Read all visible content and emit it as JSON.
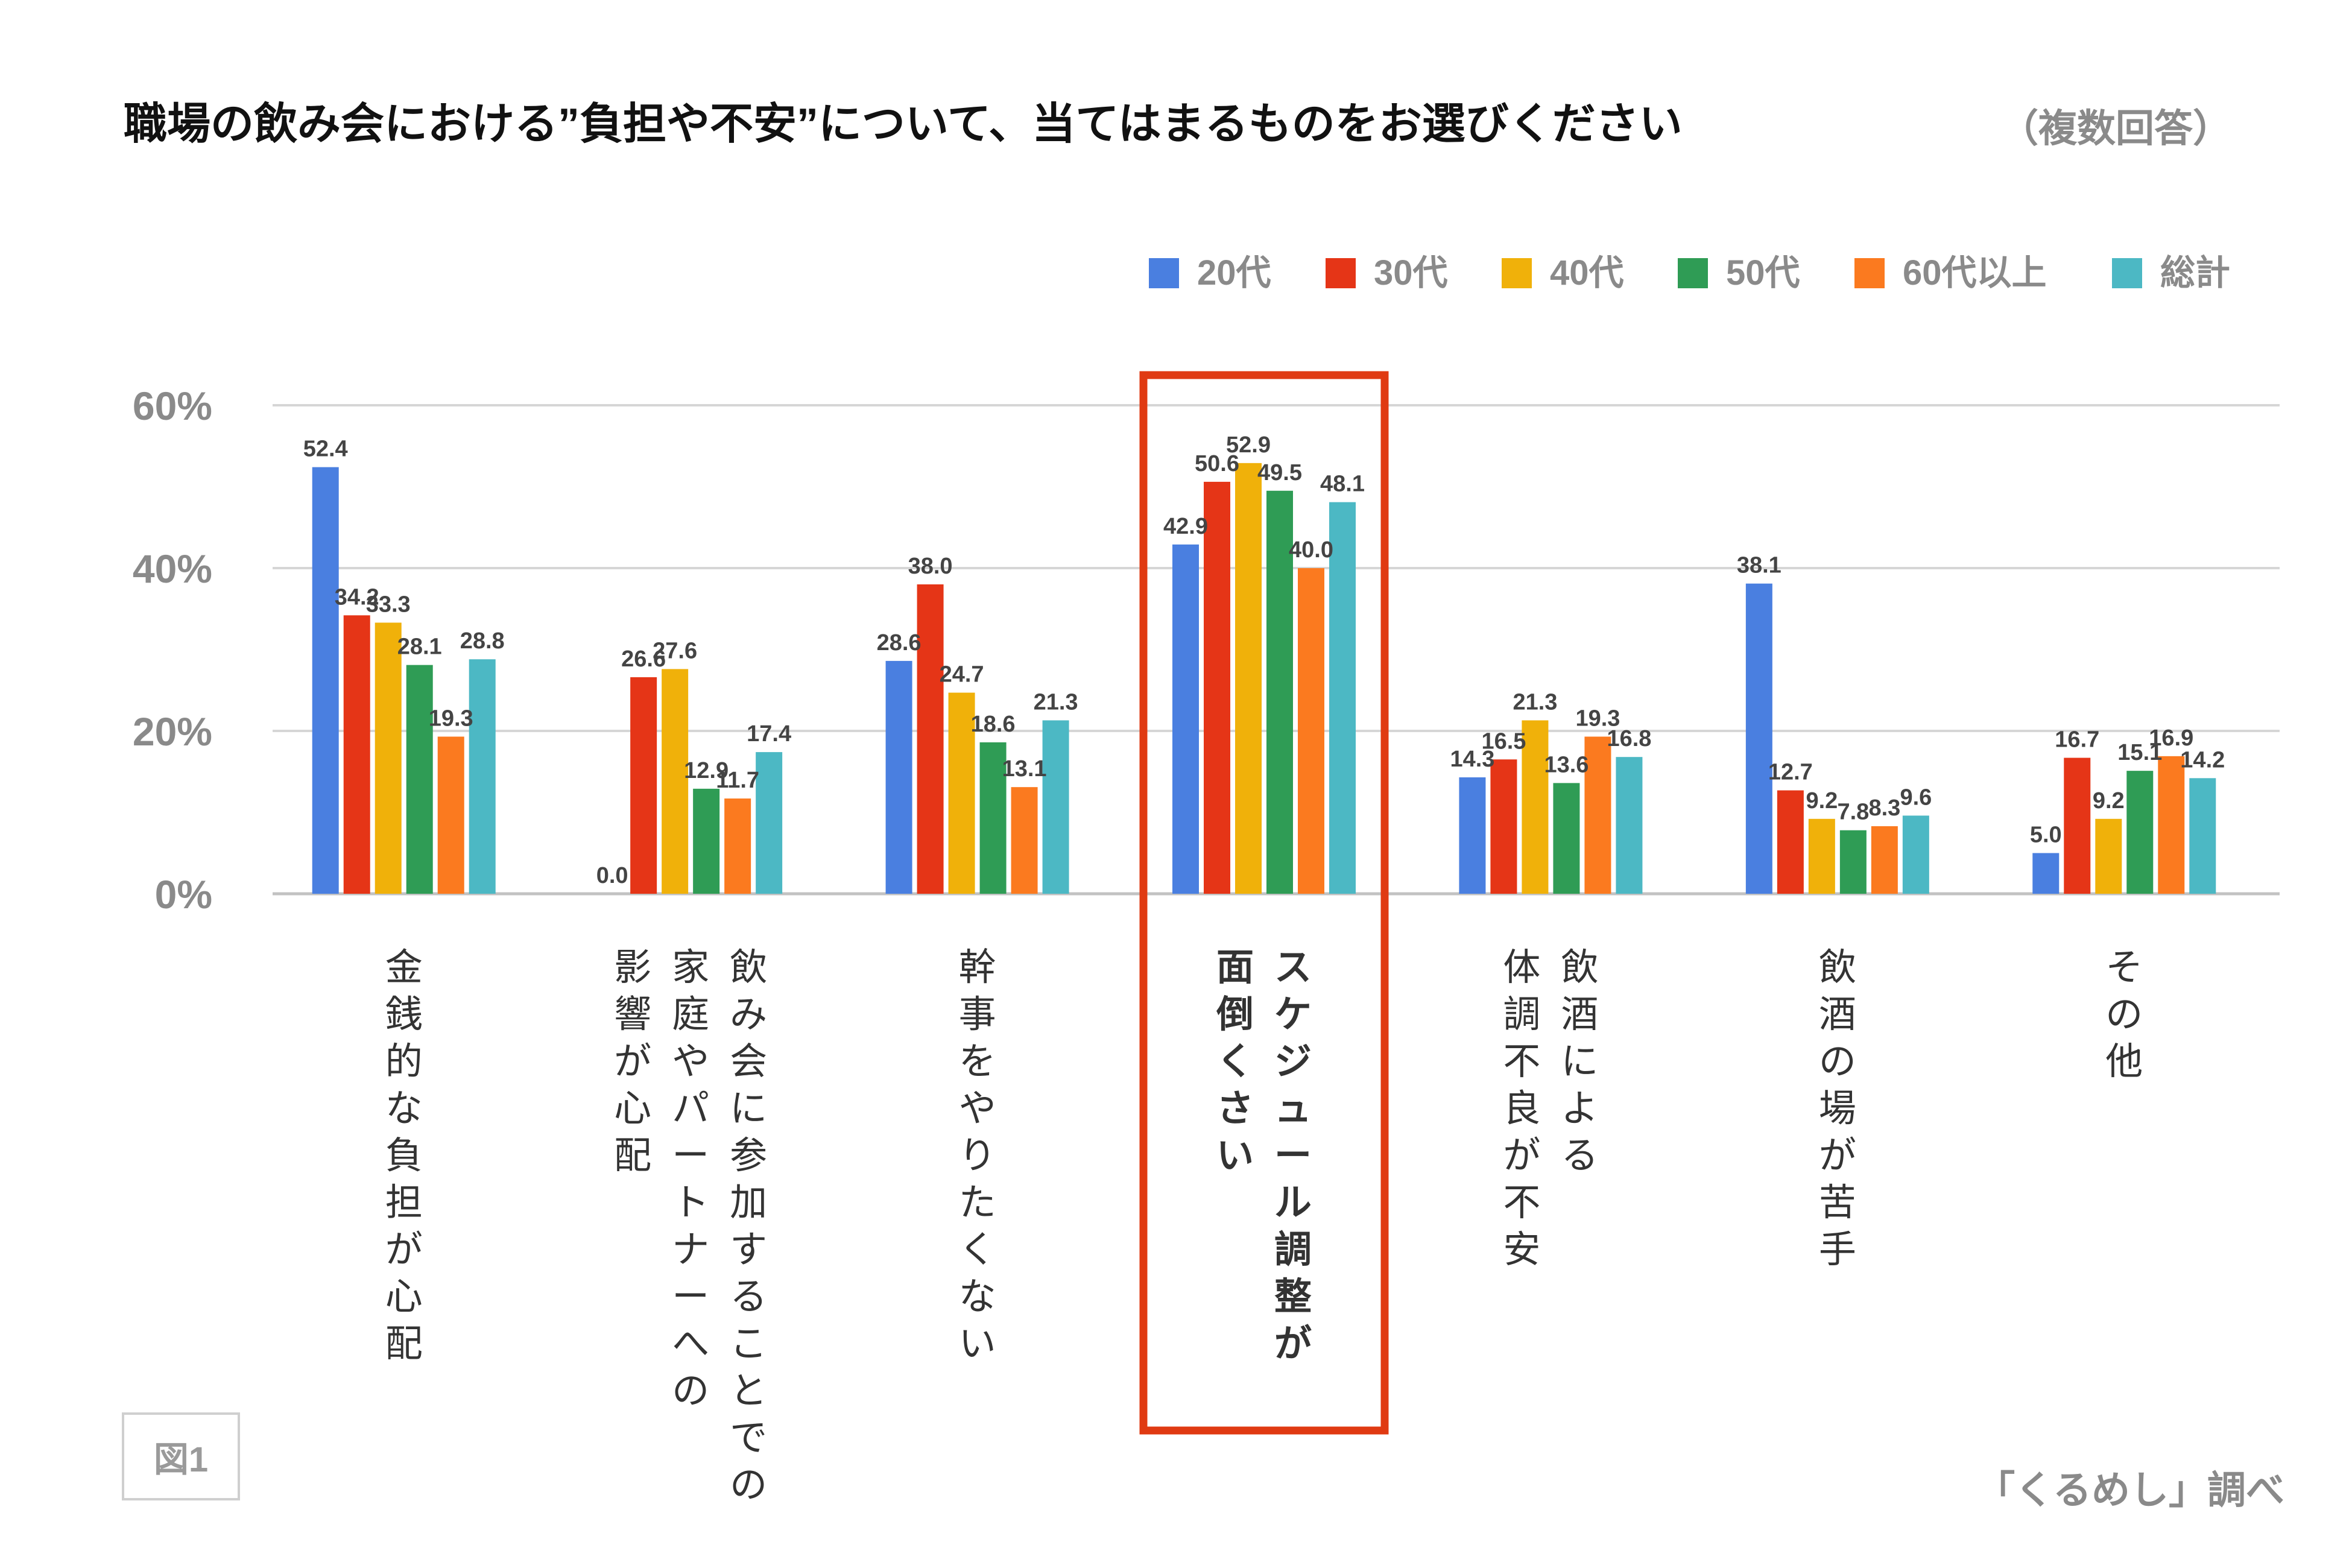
{
  "chart_data": {
    "type": "bar",
    "title": "職場の飲み会における”負担や不安”について、当てはまるものをお選びください",
    "subtitle": "（複数回答）",
    "ylabel": "",
    "xlabel": "",
    "ylim": [
      0,
      60
    ],
    "yticks": [
      0,
      20,
      40,
      60
    ],
    "ytick_labels": [
      "0%",
      "20%",
      "40%",
      "60%"
    ],
    "grid": true,
    "legend_position": "top-right",
    "categories": [
      [
        "金銭的な負担が心配"
      ],
      [
        "飲み会に参加することでの",
        "家庭やパートナーへの",
        "影響が心配"
      ],
      [
        "幹事をやりたくない"
      ],
      [
        "スケジュール調整が",
        "面倒くさい"
      ],
      [
        "飲酒による",
        "体調不良が不安"
      ],
      [
        "飲酒の場が苦手"
      ],
      [
        "その他"
      ]
    ],
    "highlighted_category": 3,
    "series": [
      {
        "name": "20代",
        "color": "#4a7fe0",
        "values": [
          52.4,
          0.0,
          28.6,
          42.9,
          14.3,
          38.1,
          5.0
        ]
      },
      {
        "name": "30代",
        "color": "#e53517",
        "values": [
          34.2,
          26.6,
          38.0,
          50.6,
          16.5,
          12.7,
          16.7
        ]
      },
      {
        "name": "40代",
        "color": "#f0b10a",
        "values": [
          33.3,
          27.6,
          24.7,
          52.9,
          21.3,
          9.2,
          9.2
        ]
      },
      {
        "name": "50代",
        "color": "#2f9c55",
        "values": [
          28.1,
          12.9,
          18.6,
          49.5,
          13.6,
          7.8,
          15.1
        ]
      },
      {
        "name": "60代以上",
        "color": "#fb7a1f",
        "values": [
          19.3,
          11.7,
          13.1,
          40.0,
          19.3,
          8.3,
          16.9
        ]
      },
      {
        "name": "総計",
        "color": "#4cb8c4",
        "values": [
          28.8,
          17.4,
          21.3,
          48.1,
          16.8,
          9.6,
          14.2
        ]
      }
    ]
  },
  "figure_tag": "図1",
  "source": "「くるめし」調べ",
  "colors": {
    "highlight": "#e03a12",
    "grid": "#d6d6d6"
  }
}
